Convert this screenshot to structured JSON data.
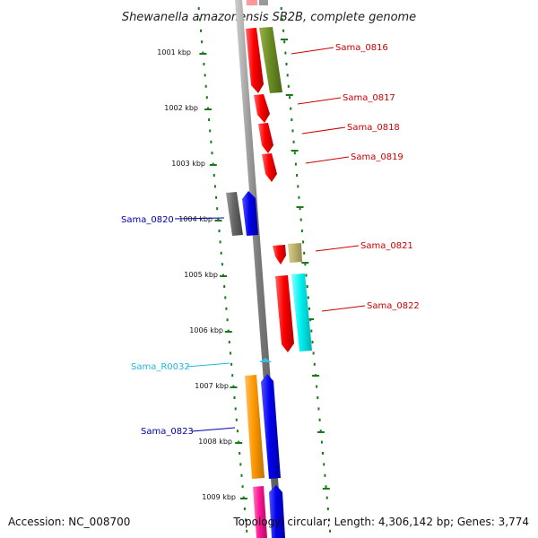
{
  "title": "Shewanella amazonensis SB2B, complete genome",
  "footer": {
    "accession": "Accession: NC_008700",
    "stats": "Topology: circular; Length: 4,306,142 bp; Genes: 3,774"
  },
  "colors": {
    "backbone": "#8a8a8a",
    "tick": "#1a7a1a",
    "label_red": "#cc0000",
    "label_blue": "#0000aa",
    "label_cyan": "#22b8e0"
  },
  "kbp_ticks": [
    "1001 kbp",
    "1002 kbp",
    "1003 kbp",
    "1004 kbp",
    "1005 kbp",
    "1006 kbp",
    "1007 kbp",
    "1008 kbp",
    "1009 kbp"
  ],
  "gene_labels": [
    {
      "id": "sama-0816",
      "text": "Sama_0816",
      "color": "#cc0000"
    },
    {
      "id": "sama-0817",
      "text": "Sama_0817",
      "color": "#cc0000"
    },
    {
      "id": "sama-0818",
      "text": "Sama_0818",
      "color": "#cc0000"
    },
    {
      "id": "sama-0819",
      "text": "Sama_0819",
      "color": "#cc0000"
    },
    {
      "id": "sama-0820",
      "text": "Sama_0820",
      "color": "#0000aa"
    },
    {
      "id": "sama-0821",
      "text": "Sama_0821",
      "color": "#cc0000"
    },
    {
      "id": "sama-0822",
      "text": "Sama_0822",
      "color": "#cc0000"
    },
    {
      "id": "sama-r0032",
      "text": "Sama_R0032",
      "color": "#22b8e0"
    },
    {
      "id": "sama-0823",
      "text": "Sama_0823",
      "color": "#0000aa"
    }
  ]
}
